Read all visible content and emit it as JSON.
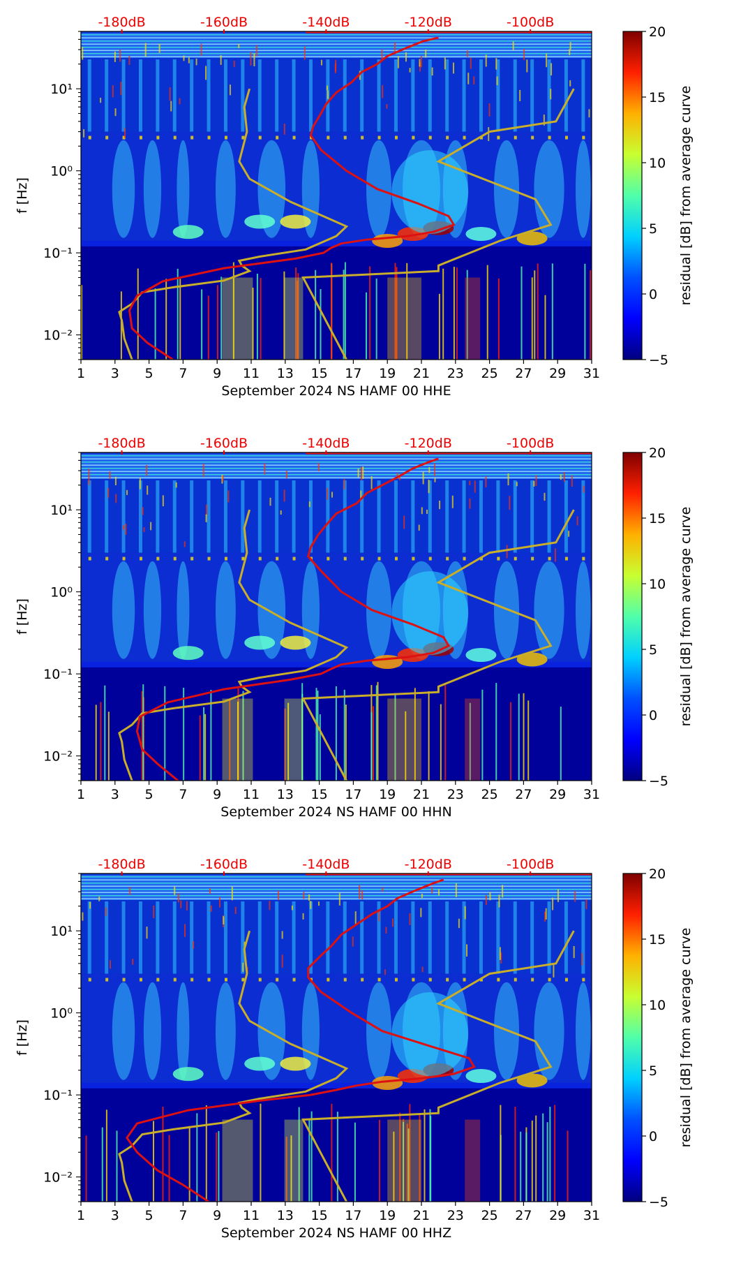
{
  "chart_data": [
    {
      "type": "heatmap",
      "xlabel": "September 2024 NS HAMF 00 HHE",
      "ylabel": "f [Hz]",
      "x_ticks": [
        "1",
        "3",
        "5",
        "7",
        "9",
        "11",
        "13",
        "15",
        "17",
        "19",
        "21",
        "23",
        "25",
        "27",
        "29",
        "31"
      ],
      "x_range": [
        1,
        31
      ],
      "y_ticks": [
        "10⁻²",
        "10⁻¹",
        "10⁰",
        "10¹"
      ],
      "y_range": [
        0.005,
        50
      ],
      "y_scale": "log",
      "top_db_ticks": [
        "-180dB",
        "-160dB",
        "-140dB",
        "-120dB",
        "-100dB"
      ],
      "top_db_range": [
        -188,
        -88
      ],
      "colorbar": {
        "label": "residual [dB] from average curve",
        "ticks": [
          "−5",
          "0",
          "5",
          "10",
          "15",
          "20"
        ],
        "range": [
          -5,
          20
        ]
      },
      "red_curve_db": [
        [
          -170,
          0.005
        ],
        [
          -175,
          0.008
        ],
        [
          -178,
          0.012
        ],
        [
          -178.5,
          0.02
        ],
        [
          -177,
          0.03
        ],
        [
          -172,
          0.045
        ],
        [
          -160,
          0.065
        ],
        [
          -146,
          0.085
        ],
        [
          -140.5,
          0.1
        ],
        [
          -139,
          0.115
        ],
        [
          -137,
          0.13
        ],
        [
          -132,
          0.145
        ],
        [
          -124,
          0.16
        ],
        [
          -119,
          0.18
        ],
        [
          -115,
          0.22
        ],
        [
          -116,
          0.28
        ],
        [
          -122,
          0.4
        ],
        [
          -130,
          0.6
        ],
        [
          -136,
          1.0
        ],
        [
          -141,
          1.8
        ],
        [
          -143,
          2.7
        ],
        [
          -142.5,
          3.5
        ],
        [
          -141,
          5.0
        ],
        [
          -140,
          6.5
        ],
        [
          -138,
          9.0
        ],
        [
          -135,
          12
        ],
        [
          -133,
          16
        ],
        [
          -130,
          20
        ],
        [
          -128,
          25
        ],
        [
          -124,
          32
        ],
        [
          -121,
          38
        ],
        [
          -118,
          42
        ]
      ],
      "yellow_curve_db": [
        [
          -178,
          0.005
        ],
        [
          -179.5,
          0.009
        ],
        [
          -180,
          0.015
        ],
        [
          -180.5,
          0.019
        ],
        [
          -178,
          0.024
        ],
        [
          -176,
          0.033
        ],
        [
          -170,
          0.038
        ],
        [
          -160,
          0.046
        ],
        [
          -155,
          0.06
        ],
        [
          -156.5,
          0.07
        ],
        [
          -157,
          0.08
        ],
        [
          -153,
          0.09
        ],
        [
          -144,
          0.11
        ],
        [
          -138,
          0.16
        ],
        [
          -136,
          0.21
        ],
        [
          -140,
          0.27
        ],
        [
          -147,
          0.42
        ],
        [
          -155,
          0.8
        ],
        [
          -157,
          1.3
        ],
        [
          -155.5,
          3.0
        ],
        [
          -156,
          6.0
        ],
        [
          -155,
          10
        ]
      ],
      "yellow_curve2_db": [
        [
          -136,
          0.005
        ],
        [
          -144.5,
          0.05
        ],
        [
          -118,
          0.06
        ],
        [
          -118,
          0.07
        ],
        [
          -106,
          0.14
        ],
        [
          -96,
          0.22
        ],
        [
          -99,
          0.45
        ],
        [
          -118,
          1.3
        ],
        [
          -108,
          3.0
        ],
        [
          -95,
          4.0
        ],
        [
          -91.5,
          10
        ]
      ]
    },
    {
      "type": "heatmap",
      "xlabel": "September 2024 NS HAMF 00 HHN",
      "ylabel": "f [Hz]",
      "x_ticks": [
        "1",
        "3",
        "5",
        "7",
        "9",
        "11",
        "13",
        "15",
        "17",
        "19",
        "21",
        "23",
        "25",
        "27",
        "29",
        "31"
      ],
      "x_range": [
        1,
        31
      ],
      "y_ticks": [
        "10⁻²",
        "10⁻¹",
        "10⁰",
        "10¹"
      ],
      "y_range": [
        0.005,
        50
      ],
      "y_scale": "log",
      "top_db_ticks": [
        "-180dB",
        "-160dB",
        "-140dB",
        "-120dB",
        "-100dB"
      ],
      "top_db_range": [
        -188,
        -88
      ],
      "colorbar": {
        "label": "residual [dB] from average curve",
        "ticks": [
          "−5",
          "0",
          "5",
          "10",
          "15",
          "20"
        ],
        "range": [
          -5,
          20
        ]
      },
      "red_curve_db": [
        [
          -169,
          0.005
        ],
        [
          -173,
          0.008
        ],
        [
          -176,
          0.012
        ],
        [
          -177,
          0.02
        ],
        [
          -176.5,
          0.03
        ],
        [
          -171,
          0.045
        ],
        [
          -160,
          0.065
        ],
        [
          -147,
          0.085
        ],
        [
          -141,
          0.1
        ],
        [
          -139,
          0.115
        ],
        [
          -137,
          0.13
        ],
        [
          -132,
          0.145
        ],
        [
          -124,
          0.16
        ],
        [
          -119,
          0.18
        ],
        [
          -116,
          0.22
        ],
        [
          -117,
          0.28
        ],
        [
          -123,
          0.4
        ],
        [
          -131,
          0.6
        ],
        [
          -137,
          1.0
        ],
        [
          -141,
          1.8
        ],
        [
          -143.5,
          2.7
        ],
        [
          -143,
          3.5
        ],
        [
          -141.5,
          5.0
        ],
        [
          -140,
          6.5
        ],
        [
          -138,
          9.0
        ],
        [
          -134,
          12
        ],
        [
          -132,
          16
        ],
        [
          -129,
          20
        ],
        [
          -126,
          25
        ],
        [
          -123,
          32
        ],
        [
          -120,
          38
        ],
        [
          -118,
          42
        ]
      ],
      "yellow_curve_db": [
        [
          -178,
          0.005
        ],
        [
          -179.5,
          0.009
        ],
        [
          -180,
          0.015
        ],
        [
          -180.5,
          0.019
        ],
        [
          -178,
          0.024
        ],
        [
          -176,
          0.033
        ],
        [
          -170,
          0.038
        ],
        [
          -160,
          0.046
        ],
        [
          -155,
          0.06
        ],
        [
          -156.5,
          0.07
        ],
        [
          -157,
          0.08
        ],
        [
          -153,
          0.09
        ],
        [
          -144,
          0.11
        ],
        [
          -138,
          0.16
        ],
        [
          -136,
          0.21
        ],
        [
          -140,
          0.27
        ],
        [
          -147,
          0.42
        ],
        [
          -155,
          0.8
        ],
        [
          -157,
          1.3
        ],
        [
          -155.5,
          3.0
        ],
        [
          -156,
          6.0
        ],
        [
          -155,
          10
        ]
      ],
      "yellow_curve2_db": [
        [
          -136,
          0.005
        ],
        [
          -144.5,
          0.05
        ],
        [
          -118,
          0.06
        ],
        [
          -118,
          0.07
        ],
        [
          -106,
          0.14
        ],
        [
          -96,
          0.22
        ],
        [
          -99,
          0.45
        ],
        [
          -118,
          1.3
        ],
        [
          -108,
          3.0
        ],
        [
          -95,
          4.0
        ],
        [
          -91.5,
          10
        ]
      ]
    },
    {
      "type": "heatmap",
      "xlabel": "September 2024 NS HAMF 00 HHZ",
      "ylabel": "f [Hz]",
      "x_ticks": [
        "1",
        "3",
        "5",
        "7",
        "9",
        "11",
        "13",
        "15",
        "17",
        "19",
        "21",
        "23",
        "25",
        "27",
        "29",
        "31"
      ],
      "x_range": [
        1,
        31
      ],
      "y_ticks": [
        "10⁻²",
        "10⁻¹",
        "10⁰",
        "10¹"
      ],
      "y_range": [
        0.005,
        50
      ],
      "y_scale": "log",
      "top_db_ticks": [
        "-180dB",
        "-160dB",
        "-140dB",
        "-120dB",
        "-100dB"
      ],
      "top_db_range": [
        -188,
        -88
      ],
      "colorbar": {
        "label": "residual [dB] from average curve",
        "ticks": [
          "−5",
          "0",
          "5",
          "10",
          "15",
          "20"
        ],
        "range": [
          -5,
          20
        ]
      },
      "red_curve_db": [
        [
          -163,
          0.005
        ],
        [
          -168,
          0.008
        ],
        [
          -173,
          0.012
        ],
        [
          -177,
          0.02
        ],
        [
          -179,
          0.03
        ],
        [
          -177,
          0.045
        ],
        [
          -167,
          0.065
        ],
        [
          -153,
          0.085
        ],
        [
          -143,
          0.1
        ],
        [
          -138,
          0.115
        ],
        [
          -134,
          0.13
        ],
        [
          -129,
          0.145
        ],
        [
          -121,
          0.16
        ],
        [
          -115,
          0.18
        ],
        [
          -111,
          0.22
        ],
        [
          -112,
          0.28
        ],
        [
          -120,
          0.4
        ],
        [
          -129,
          0.6
        ],
        [
          -135,
          1.0
        ],
        [
          -141,
          1.8
        ],
        [
          -143.5,
          2.7
        ],
        [
          -143.5,
          3.5
        ],
        [
          -141,
          5.0
        ],
        [
          -139,
          6.5
        ],
        [
          -137,
          9.0
        ],
        [
          -134,
          12
        ],
        [
          -131,
          16
        ],
        [
          -128,
          20
        ],
        [
          -126,
          25
        ],
        [
          -122,
          32
        ],
        [
          -119,
          38
        ],
        [
          -117,
          42
        ]
      ],
      "yellow_curve_db": [
        [
          -178,
          0.005
        ],
        [
          -179.5,
          0.009
        ],
        [
          -180,
          0.015
        ],
        [
          -180.5,
          0.019
        ],
        [
          -178,
          0.024
        ],
        [
          -176,
          0.033
        ],
        [
          -170,
          0.038
        ],
        [
          -160,
          0.046
        ],
        [
          -155,
          0.06
        ],
        [
          -156.5,
          0.07
        ],
        [
          -157,
          0.08
        ],
        [
          -153,
          0.09
        ],
        [
          -144,
          0.11
        ],
        [
          -138,
          0.16
        ],
        [
          -136,
          0.21
        ],
        [
          -140,
          0.27
        ],
        [
          -147,
          0.42
        ],
        [
          -155,
          0.8
        ],
        [
          -157,
          1.3
        ],
        [
          -155.5,
          3.0
        ],
        [
          -156,
          6.0
        ],
        [
          -155,
          10
        ]
      ],
      "yellow_curve2_db": [
        [
          -136,
          0.005
        ],
        [
          -144.5,
          0.05
        ],
        [
          -118,
          0.06
        ],
        [
          -118,
          0.07
        ],
        [
          -106,
          0.14
        ],
        [
          -96,
          0.22
        ],
        [
          -99,
          0.45
        ],
        [
          -118,
          1.3
        ],
        [
          -108,
          3.0
        ],
        [
          -95,
          4.0
        ],
        [
          -91.5,
          10
        ]
      ]
    }
  ],
  "colors": {
    "red_curve": "#dd1111",
    "yellow_curve": "#c8ae2a",
    "db_text": "#ee0000",
    "jet": [
      "#00007f",
      "#0000ff",
      "#007fff",
      "#00ffff",
      "#7fff7f",
      "#ffff00",
      "#ff7f00",
      "#ff0000",
      "#7f0000"
    ]
  }
}
